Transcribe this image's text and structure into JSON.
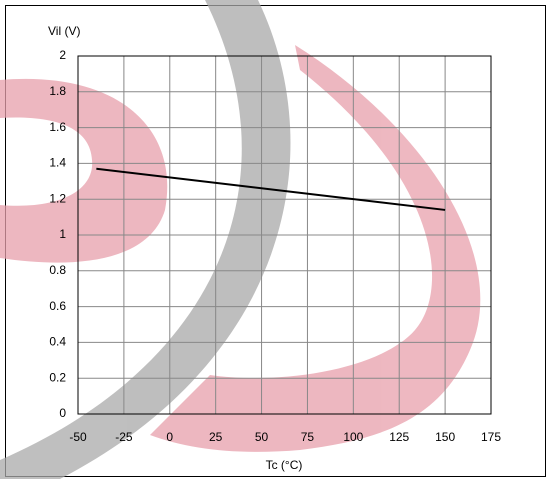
{
  "chart_data": {
    "type": "line",
    "ylabel": "Vil (V)",
    "xlabel": "Tc (°C)",
    "xlim": [
      -50,
      175
    ],
    "xticks": [
      -50,
      -25,
      0,
      25,
      50,
      75,
      100,
      125,
      150,
      175
    ],
    "ylim": [
      0,
      2
    ],
    "yticks": [
      0,
      0.2,
      0.4,
      0.6,
      0.8,
      1,
      1.2,
      1.4,
      1.6,
      1.8,
      2
    ],
    "grid": true,
    "series": [
      {
        "color": "#000000",
        "x": [
          -40,
          150
        ],
        "values": [
          1.37,
          1.14
        ]
      }
    ]
  }
}
